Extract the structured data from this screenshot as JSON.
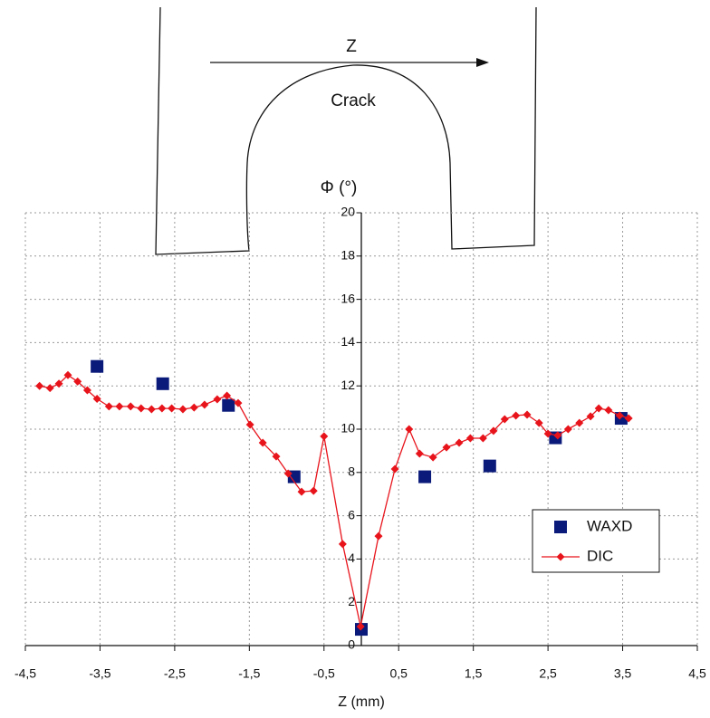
{
  "chart_data": {
    "type": "line",
    "y_label": "Φ (°)",
    "x_label": "Z (mm)",
    "annotations": [
      "Z",
      "Crack"
    ],
    "xlim": [
      -4.5,
      4.5
    ],
    "xticks": [
      {
        "value": -4.5,
        "label": "-4,5"
      },
      {
        "value": -3.5,
        "label": "-3,5"
      },
      {
        "value": -2.5,
        "label": "-2,5"
      },
      {
        "value": -1.5,
        "label": "-1,5"
      },
      {
        "value": -0.5,
        "label": "-0,5"
      },
      {
        "value": 0.5,
        "label": "0,5"
      },
      {
        "value": 1.5,
        "label": "1,5"
      },
      {
        "value": 2.5,
        "label": "2,5"
      },
      {
        "value": 3.5,
        "label": "3,5"
      },
      {
        "value": 4.5,
        "label": "4,5"
      }
    ],
    "ylim": [
      0,
      20
    ],
    "yticks": [
      0,
      2,
      4,
      6,
      8,
      10,
      12,
      14,
      16,
      18,
      20
    ],
    "grid": true,
    "legend": "lower-right",
    "series": [
      {
        "name": "WAXD",
        "color": "#0a1a7a",
        "mode": "markers",
        "marker": "square",
        "x": [
          -3.54,
          -2.66,
          -1.78,
          -0.9,
          0.0,
          0.85,
          1.72,
          2.6,
          3.48
        ],
        "values": [
          12.9,
          12.1,
          11.1,
          7.8,
          0.75,
          7.8,
          8.3,
          9.6,
          10.5
        ]
      },
      {
        "name": "DIC",
        "color": "#e8141c",
        "mode": "lines+markers",
        "marker": "diamond",
        "x": [
          -4.31,
          -4.17,
          -4.05,
          -3.93,
          -3.8,
          -3.67,
          -3.54,
          -3.38,
          -3.24,
          -3.09,
          -2.95,
          -2.81,
          -2.67,
          -2.54,
          -2.39,
          -2.24,
          -2.1,
          -1.93,
          -1.8,
          -1.65,
          -1.49,
          -1.32,
          -1.14,
          -0.98,
          -0.8,
          -0.64,
          -0.5,
          -0.25,
          -0.01,
          0.23,
          0.45,
          0.64,
          0.78,
          0.96,
          1.14,
          1.31,
          1.46,
          1.63,
          1.77,
          1.92,
          2.07,
          2.22,
          2.38,
          2.5,
          2.63,
          2.77,
          2.92,
          3.07,
          3.18,
          3.31,
          3.46,
          3.58
        ],
        "values": [
          12.0,
          11.9,
          12.1,
          12.5,
          12.2,
          11.8,
          11.4,
          11.05,
          11.05,
          11.05,
          10.96,
          10.92,
          10.96,
          10.96,
          10.92,
          11.0,
          11.13,
          11.38,
          11.55,
          11.21,
          10.21,
          9.37,
          8.74,
          7.95,
          7.11,
          7.15,
          9.67,
          4.69,
          0.88,
          5.06,
          8.16,
          10.0,
          8.87,
          8.7,
          9.16,
          9.37,
          9.58,
          9.58,
          9.92,
          10.46,
          10.63,
          10.67,
          10.29,
          9.79,
          9.71,
          10.0,
          10.29,
          10.59,
          10.96,
          10.88,
          10.63,
          10.5
        ]
      }
    ]
  }
}
